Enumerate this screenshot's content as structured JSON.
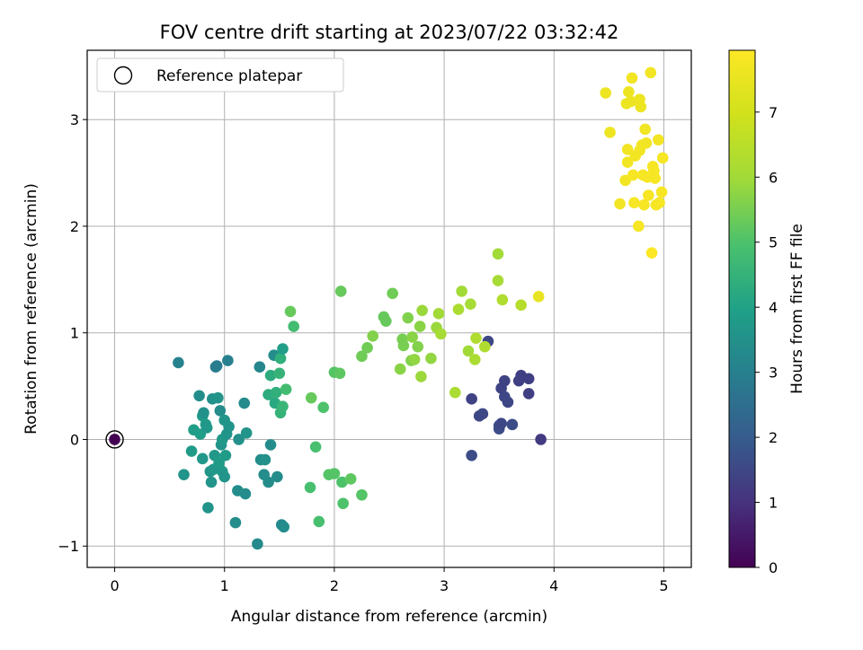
{
  "chart_data": {
    "type": "scatter",
    "title": "FOV centre drift starting at 2023/07/22 03:32:42",
    "xlabel": "Angular distance from reference (arcmin)",
    "ylabel": "Rotation from reference (arcmin)",
    "xlim": [
      -0.25,
      5.25
    ],
    "ylim": [
      -1.2,
      3.65
    ],
    "xticks": [
      0,
      1,
      2,
      3,
      4,
      5
    ],
    "yticks": [
      -1,
      0,
      1,
      2,
      3
    ],
    "grid": true,
    "legend": {
      "placement": "top-left",
      "entries": [
        "Reference platepar"
      ]
    },
    "reference_point": {
      "x": 0,
      "y": 0,
      "hours": 0
    },
    "colorbar": {
      "label": "Hours from first FF file",
      "range": [
        0,
        7.95
      ],
      "ticks": [
        0,
        1,
        2,
        3,
        4,
        5,
        6,
        7
      ],
      "colormap": "viridis"
    },
    "points": [
      {
        "x": 3.88,
        "y": 0.0,
        "h": 1.2
      },
      {
        "x": 3.25,
        "y": -0.15,
        "h": 1.6
      },
      {
        "x": 3.25,
        "y": 0.38,
        "h": 1.4
      },
      {
        "x": 3.32,
        "y": 0.22,
        "h": 1.5
      },
      {
        "x": 3.35,
        "y": 0.24,
        "h": 1.5
      },
      {
        "x": 3.4,
        "y": 0.92,
        "h": 1.5
      },
      {
        "x": 3.5,
        "y": 0.13,
        "h": 1.6
      },
      {
        "x": 3.5,
        "y": 0.1,
        "h": 1.6
      },
      {
        "x": 3.52,
        "y": 0.15,
        "h": 1.5
      },
      {
        "x": 3.52,
        "y": 0.48,
        "h": 1.4
      },
      {
        "x": 3.55,
        "y": 0.55,
        "h": 1.4
      },
      {
        "x": 3.55,
        "y": 0.4,
        "h": 1.5
      },
      {
        "x": 3.58,
        "y": 0.35,
        "h": 1.5
      },
      {
        "x": 3.62,
        "y": 0.14,
        "h": 1.6
      },
      {
        "x": 3.68,
        "y": 0.55,
        "h": 1.3
      },
      {
        "x": 3.7,
        "y": 0.6,
        "h": 1.3
      },
      {
        "x": 3.77,
        "y": 0.57,
        "h": 1.3
      },
      {
        "x": 3.77,
        "y": 0.43,
        "h": 1.3
      },
      {
        "x": 0.58,
        "y": 0.72,
        "h": 3.1
      },
      {
        "x": 0.63,
        "y": -0.33,
        "h": 3.6
      },
      {
        "x": 0.7,
        "y": -0.11,
        "h": 3.8
      },
      {
        "x": 0.72,
        "y": 0.09,
        "h": 3.9
      },
      {
        "x": 0.77,
        "y": 0.41,
        "h": 3.4
      },
      {
        "x": 0.78,
        "y": 0.05,
        "h": 3.9
      },
      {
        "x": 0.8,
        "y": 0.22,
        "h": 3.8
      },
      {
        "x": 0.8,
        "y": -0.18,
        "h": 3.7
      },
      {
        "x": 0.81,
        "y": 0.25,
        "h": 3.5
      },
      {
        "x": 0.83,
        "y": 0.14,
        "h": 3.8
      },
      {
        "x": 0.84,
        "y": 0.11,
        "h": 3.7
      },
      {
        "x": 0.85,
        "y": -0.64,
        "h": 3.6
      },
      {
        "x": 0.87,
        "y": -0.3,
        "h": 3.6
      },
      {
        "x": 0.88,
        "y": -0.4,
        "h": 3.6
      },
      {
        "x": 0.89,
        "y": 0.38,
        "h": 3.5
      },
      {
        "x": 0.9,
        "y": -0.28,
        "h": 3.7
      },
      {
        "x": 0.91,
        "y": -0.15,
        "h": 3.7
      },
      {
        "x": 0.92,
        "y": 0.68,
        "h": 2.9
      },
      {
        "x": 0.93,
        "y": 0.69,
        "h": 2.9
      },
      {
        "x": 0.94,
        "y": 0.39,
        "h": 3.6
      },
      {
        "x": 0.95,
        "y": -0.22,
        "h": 3.8
      },
      {
        "x": 0.96,
        "y": 0.27,
        "h": 3.4
      },
      {
        "x": 0.97,
        "y": -0.05,
        "h": 3.6
      },
      {
        "x": 0.98,
        "y": 0.0,
        "h": 3.7
      },
      {
        "x": 0.98,
        "y": -0.3,
        "h": 3.7
      },
      {
        "x": 1.0,
        "y": 0.18,
        "h": 3.6
      },
      {
        "x": 1.0,
        "y": -0.35,
        "h": 3.6
      },
      {
        "x": 1.01,
        "y": -0.15,
        "h": 3.8
      },
      {
        "x": 1.02,
        "y": 0.05,
        "h": 3.6
      },
      {
        "x": 1.03,
        "y": 0.74,
        "h": 3.0
      },
      {
        "x": 1.04,
        "y": 0.12,
        "h": 3.6
      },
      {
        "x": 1.1,
        "y": -0.78,
        "h": 3.4
      },
      {
        "x": 1.12,
        "y": -0.48,
        "h": 3.4
      },
      {
        "x": 1.13,
        "y": 0.0,
        "h": 3.5
      },
      {
        "x": 1.18,
        "y": 0.34,
        "h": 3.3
      },
      {
        "x": 1.19,
        "y": -0.51,
        "h": 3.4
      },
      {
        "x": 1.2,
        "y": 0.06,
        "h": 3.6
      },
      {
        "x": 1.3,
        "y": -0.98,
        "h": 3.3
      },
      {
        "x": 1.32,
        "y": 0.68,
        "h": 3.2
      },
      {
        "x": 1.33,
        "y": -0.19,
        "h": 3.4
      },
      {
        "x": 1.36,
        "y": -0.33,
        "h": 3.4
      },
      {
        "x": 1.37,
        "y": -0.19,
        "h": 3.5
      },
      {
        "x": 1.4,
        "y": -0.4,
        "h": 3.4
      },
      {
        "x": 1.4,
        "y": 0.42,
        "h": 4.3
      },
      {
        "x": 1.42,
        "y": 0.6,
        "h": 4.3
      },
      {
        "x": 1.42,
        "y": -0.05,
        "h": 3.4
      },
      {
        "x": 1.45,
        "y": 0.79,
        "h": 3.4
      },
      {
        "x": 1.46,
        "y": 0.34,
        "h": 4.2
      },
      {
        "x": 1.47,
        "y": 0.44,
        "h": 4.4
      },
      {
        "x": 1.48,
        "y": -0.35,
        "h": 3.4
      },
      {
        "x": 1.5,
        "y": 0.62,
        "h": 4.5
      },
      {
        "x": 1.51,
        "y": 0.76,
        "h": 4.4
      },
      {
        "x": 1.51,
        "y": 0.25,
        "h": 4.5
      },
      {
        "x": 1.52,
        "y": -0.8,
        "h": 3.3
      },
      {
        "x": 1.53,
        "y": 0.31,
        "h": 4.6
      },
      {
        "x": 1.53,
        "y": 0.85,
        "h": 3.9
      },
      {
        "x": 1.54,
        "y": -0.82,
        "h": 3.4
      },
      {
        "x": 1.56,
        "y": 0.47,
        "h": 4.8
      },
      {
        "x": 1.6,
        "y": 1.2,
        "h": 5.3
      },
      {
        "x": 1.63,
        "y": 1.06,
        "h": 4.8
      },
      {
        "x": 1.78,
        "y": -0.45,
        "h": 4.9
      },
      {
        "x": 1.79,
        "y": 0.39,
        "h": 5.3
      },
      {
        "x": 1.83,
        "y": -0.07,
        "h": 4.9
      },
      {
        "x": 1.86,
        "y": -0.77,
        "h": 4.9
      },
      {
        "x": 1.9,
        "y": 0.3,
        "h": 5.0
      },
      {
        "x": 1.95,
        "y": -0.33,
        "h": 5.1
      },
      {
        "x": 2.0,
        "y": -0.32,
        "h": 5.1
      },
      {
        "x": 2.0,
        "y": 0.63,
        "h": 5.1
      },
      {
        "x": 2.05,
        "y": 0.62,
        "h": 5.2
      },
      {
        "x": 2.06,
        "y": 1.39,
        "h": 5.3
      },
      {
        "x": 2.07,
        "y": -0.4,
        "h": 5.0
      },
      {
        "x": 2.08,
        "y": -0.6,
        "h": 5.0
      },
      {
        "x": 2.15,
        "y": -0.37,
        "h": 5.2
      },
      {
        "x": 2.25,
        "y": -0.52,
        "h": 5.1
      },
      {
        "x": 2.25,
        "y": 0.78,
        "h": 5.4
      },
      {
        "x": 2.3,
        "y": 0.86,
        "h": 5.4
      },
      {
        "x": 2.35,
        "y": 0.97,
        "h": 5.6
      },
      {
        "x": 2.45,
        "y": 1.15,
        "h": 5.3
      },
      {
        "x": 2.47,
        "y": 1.11,
        "h": 5.3
      },
      {
        "x": 2.53,
        "y": 1.37,
        "h": 5.4
      },
      {
        "x": 2.6,
        "y": 0.66,
        "h": 5.7
      },
      {
        "x": 2.62,
        "y": 0.94,
        "h": 5.5
      },
      {
        "x": 2.63,
        "y": 0.88,
        "h": 5.5
      },
      {
        "x": 2.67,
        "y": 1.14,
        "h": 5.6
      },
      {
        "x": 2.7,
        "y": 0.74,
        "h": 5.6
      },
      {
        "x": 2.71,
        "y": 0.96,
        "h": 5.7
      },
      {
        "x": 2.73,
        "y": 0.75,
        "h": 5.8
      },
      {
        "x": 2.76,
        "y": 0.87,
        "h": 5.6
      },
      {
        "x": 2.78,
        "y": 1.06,
        "h": 5.7
      },
      {
        "x": 2.79,
        "y": 0.59,
        "h": 5.9
      },
      {
        "x": 2.8,
        "y": 1.21,
        "h": 5.9
      },
      {
        "x": 2.88,
        "y": 0.76,
        "h": 5.8
      },
      {
        "x": 2.93,
        "y": 1.05,
        "h": 5.9
      },
      {
        "x": 2.95,
        "y": 1.18,
        "h": 6.0
      },
      {
        "x": 2.97,
        "y": 0.99,
        "h": 6.1
      },
      {
        "x": 3.1,
        "y": 0.44,
        "h": 6.2
      },
      {
        "x": 3.13,
        "y": 1.22,
        "h": 6.2
      },
      {
        "x": 3.16,
        "y": 1.39,
        "h": 6.0
      },
      {
        "x": 3.22,
        "y": 0.83,
        "h": 6.0
      },
      {
        "x": 3.24,
        "y": 1.27,
        "h": 6.1
      },
      {
        "x": 3.28,
        "y": 0.75,
        "h": 6.2
      },
      {
        "x": 3.29,
        "y": 0.95,
        "h": 6.3
      },
      {
        "x": 3.37,
        "y": 0.87,
        "h": 6.3
      },
      {
        "x": 3.49,
        "y": 1.74,
        "h": 6.0
      },
      {
        "x": 3.49,
        "y": 1.49,
        "h": 6.1
      },
      {
        "x": 3.53,
        "y": 1.31,
        "h": 6.3
      },
      {
        "x": 3.7,
        "y": 1.26,
        "h": 6.4
      },
      {
        "x": 3.86,
        "y": 1.34,
        "h": 7.5
      },
      {
        "x": 4.47,
        "y": 3.25,
        "h": 7.6
      },
      {
        "x": 4.51,
        "y": 2.88,
        "h": 7.6
      },
      {
        "x": 4.6,
        "y": 2.21,
        "h": 7.7
      },
      {
        "x": 4.65,
        "y": 2.43,
        "h": 7.7
      },
      {
        "x": 4.66,
        "y": 3.15,
        "h": 7.6
      },
      {
        "x": 4.67,
        "y": 2.72,
        "h": 7.7
      },
      {
        "x": 4.67,
        "y": 2.6,
        "h": 7.7
      },
      {
        "x": 4.68,
        "y": 3.26,
        "h": 7.6
      },
      {
        "x": 4.7,
        "y": 3.17,
        "h": 7.6
      },
      {
        "x": 4.71,
        "y": 3.39,
        "h": 7.7
      },
      {
        "x": 4.72,
        "y": 2.48,
        "h": 7.8
      },
      {
        "x": 4.73,
        "y": 2.22,
        "h": 7.8
      },
      {
        "x": 4.74,
        "y": 2.66,
        "h": 7.7
      },
      {
        "x": 4.77,
        "y": 2.0,
        "h": 7.8
      },
      {
        "x": 4.78,
        "y": 2.71,
        "h": 7.7
      },
      {
        "x": 4.78,
        "y": 3.19,
        "h": 7.6
      },
      {
        "x": 4.79,
        "y": 3.12,
        "h": 7.6
      },
      {
        "x": 4.8,
        "y": 2.76,
        "h": 7.7
      },
      {
        "x": 4.81,
        "y": 2.48,
        "h": 7.8
      },
      {
        "x": 4.82,
        "y": 2.2,
        "h": 7.8
      },
      {
        "x": 4.83,
        "y": 2.91,
        "h": 7.7
      },
      {
        "x": 4.84,
        "y": 2.78,
        "h": 7.7
      },
      {
        "x": 4.85,
        "y": 2.46,
        "h": 7.8
      },
      {
        "x": 4.86,
        "y": 2.29,
        "h": 7.8
      },
      {
        "x": 4.88,
        "y": 3.44,
        "h": 7.7
      },
      {
        "x": 4.89,
        "y": 1.75,
        "h": 7.9
      },
      {
        "x": 4.9,
        "y": 2.56,
        "h": 7.8
      },
      {
        "x": 4.91,
        "y": 2.52,
        "h": 7.8
      },
      {
        "x": 4.92,
        "y": 2.45,
        "h": 7.8
      },
      {
        "x": 4.93,
        "y": 2.2,
        "h": 7.8
      },
      {
        "x": 4.95,
        "y": 2.81,
        "h": 7.7
      },
      {
        "x": 4.96,
        "y": 2.22,
        "h": 7.8
      },
      {
        "x": 4.98,
        "y": 2.32,
        "h": 7.8
      },
      {
        "x": 4.99,
        "y": 2.64,
        "h": 7.8
      }
    ]
  }
}
